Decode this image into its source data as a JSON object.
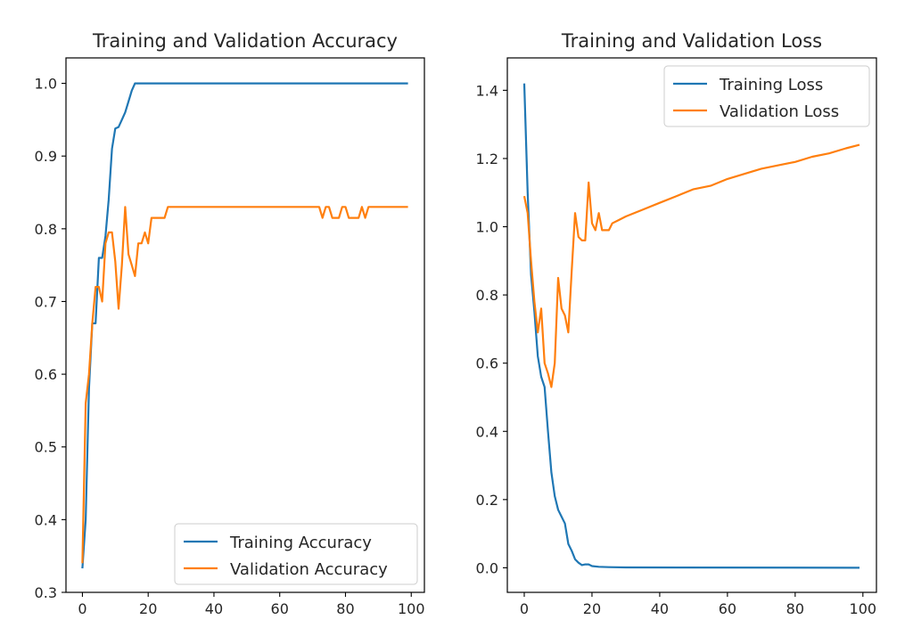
{
  "chart_data": [
    {
      "type": "line",
      "title": "Training and Validation Accuracy",
      "xlabel": "",
      "ylabel": "",
      "xlim": [
        -5,
        104
      ],
      "ylim": [
        0.3,
        1.035
      ],
      "xticks": [
        0,
        20,
        40,
        60,
        80,
        100
      ],
      "yticks": [
        0.3,
        0.4,
        0.5,
        0.6,
        0.7,
        0.8,
        0.9,
        1.0
      ],
      "grid": false,
      "legend_position": "lower-right",
      "series": [
        {
          "name": "Training Accuracy",
          "color": "#1f77b4",
          "points": [
            [
              0,
              0.333
            ],
            [
              1,
              0.4
            ],
            [
              2,
              0.58
            ],
            [
              3,
              0.67
            ],
            [
              4,
              0.67
            ],
            [
              5,
              0.76
            ],
            [
              6,
              0.76
            ],
            [
              7,
              0.79
            ],
            [
              8,
              0.84
            ],
            [
              9,
              0.91
            ],
            [
              10,
              0.938
            ],
            [
              11,
              0.94
            ],
            [
              12,
              0.95
            ],
            [
              13,
              0.96
            ],
            [
              14,
              0.975
            ],
            [
              15,
              0.99
            ],
            [
              16,
              1.0
            ],
            [
              17,
              1.0
            ],
            [
              99,
              1.0
            ]
          ]
        },
        {
          "name": "Validation Accuracy",
          "color": "#ff7f0e",
          "points": [
            [
              0,
              0.34
            ],
            [
              1,
              0.56
            ],
            [
              2,
              0.6
            ],
            [
              3,
              0.67
            ],
            [
              4,
              0.72
            ],
            [
              5,
              0.72
            ],
            [
              6,
              0.7
            ],
            [
              7,
              0.78
            ],
            [
              8,
              0.795
            ],
            [
              9,
              0.795
            ],
            [
              10,
              0.755
            ],
            [
              11,
              0.69
            ],
            [
              12,
              0.75
            ],
            [
              13,
              0.83
            ],
            [
              14,
              0.765
            ],
            [
              15,
              0.75
            ],
            [
              16,
              0.735
            ],
            [
              17,
              0.78
            ],
            [
              18,
              0.78
            ],
            [
              19,
              0.795
            ],
            [
              20,
              0.78
            ],
            [
              21,
              0.815
            ],
            [
              22,
              0.815
            ],
            [
              23,
              0.815
            ],
            [
              24,
              0.815
            ],
            [
              25,
              0.815
            ],
            [
              26,
              0.83
            ],
            [
              72,
              0.83
            ],
            [
              73,
              0.815
            ],
            [
              74,
              0.83
            ],
            [
              75,
              0.83
            ],
            [
              76,
              0.815
            ],
            [
              77,
              0.815
            ],
            [
              78,
              0.815
            ],
            [
              79,
              0.83
            ],
            [
              80,
              0.83
            ],
            [
              81,
              0.815
            ],
            [
              82,
              0.815
            ],
            [
              83,
              0.815
            ],
            [
              84,
              0.815
            ],
            [
              85,
              0.83
            ],
            [
              86,
              0.815
            ],
            [
              87,
              0.83
            ],
            [
              99,
              0.83
            ]
          ]
        }
      ]
    },
    {
      "type": "line",
      "title": "Training and Validation Loss",
      "xlabel": "",
      "ylabel": "",
      "xlim": [
        -5,
        104
      ],
      "ylim": [
        -0.072,
        1.495
      ],
      "xticks": [
        0,
        20,
        40,
        60,
        80,
        100
      ],
      "yticks": [
        0.0,
        0.2,
        0.4,
        0.6,
        0.8,
        1.0,
        1.2,
        1.4
      ],
      "grid": false,
      "legend_position": "top-right",
      "series": [
        {
          "name": "Training Loss",
          "color": "#1f77b4",
          "points": [
            [
              0,
              1.42
            ],
            [
              1,
              1.1
            ],
            [
              2,
              0.86
            ],
            [
              3,
              0.75
            ],
            [
              4,
              0.62
            ],
            [
              5,
              0.56
            ],
            [
              6,
              0.53
            ],
            [
              7,
              0.4
            ],
            [
              8,
              0.28
            ],
            [
              9,
              0.21
            ],
            [
              10,
              0.17
            ],
            [
              11,
              0.15
            ],
            [
              12,
              0.13
            ],
            [
              13,
              0.07
            ],
            [
              14,
              0.05
            ],
            [
              15,
              0.025
            ],
            [
              16,
              0.015
            ],
            [
              17,
              0.008
            ],
            [
              18,
              0.01
            ],
            [
              19,
              0.01
            ],
            [
              20,
              0.005
            ],
            [
              22,
              0.003
            ],
            [
              25,
              0.002
            ],
            [
              30,
              0.001
            ],
            [
              99,
              0.0
            ]
          ]
        },
        {
          "name": "Validation Loss",
          "color": "#ff7f0e",
          "points": [
            [
              0,
              1.09
            ],
            [
              1,
              1.04
            ],
            [
              2,
              0.9
            ],
            [
              3,
              0.78
            ],
            [
              4,
              0.69
            ],
            [
              5,
              0.76
            ],
            [
              6,
              0.6
            ],
            [
              7,
              0.57
            ],
            [
              8,
              0.53
            ],
            [
              9,
              0.6
            ],
            [
              10,
              0.85
            ],
            [
              11,
              0.76
            ],
            [
              12,
              0.74
            ],
            [
              13,
              0.69
            ],
            [
              14,
              0.87
            ],
            [
              15,
              1.04
            ],
            [
              16,
              0.97
            ],
            [
              17,
              0.96
            ],
            [
              18,
              0.96
            ],
            [
              19,
              1.13
            ],
            [
              20,
              1.01
            ],
            [
              21,
              0.99
            ],
            [
              22,
              1.04
            ],
            [
              23,
              0.99
            ],
            [
              24,
              0.99
            ],
            [
              25,
              0.99
            ],
            [
              26,
              1.01
            ],
            [
              28,
              1.02
            ],
            [
              30,
              1.03
            ],
            [
              35,
              1.05
            ],
            [
              40,
              1.07
            ],
            [
              45,
              1.09
            ],
            [
              50,
              1.11
            ],
            [
              55,
              1.12
            ],
            [
              60,
              1.14
            ],
            [
              65,
              1.155
            ],
            [
              70,
              1.17
            ],
            [
              75,
              1.18
            ],
            [
              80,
              1.19
            ],
            [
              85,
              1.205
            ],
            [
              90,
              1.215
            ],
            [
              95,
              1.23
            ],
            [
              99,
              1.24
            ]
          ]
        }
      ]
    }
  ]
}
